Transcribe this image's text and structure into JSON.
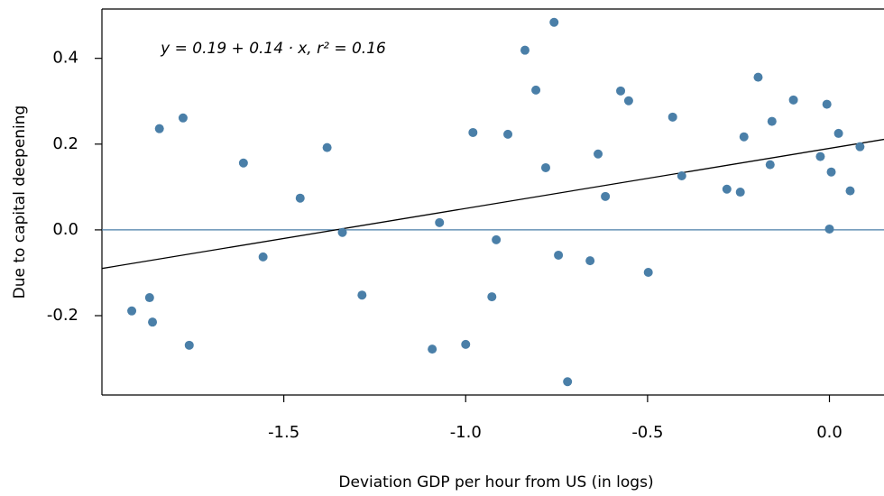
{
  "chart_data": {
    "type": "scatter",
    "x_label": "Deviation GDP per hour from US (in logs)",
    "y_label": "Due to capital deepening",
    "annotation": "y = 0.19 + 0.14 · x,  r² = 0.16",
    "trendline": {
      "intercept": 0.19,
      "slope": 0.14,
      "color": "#000000"
    },
    "reference_line": {
      "y": 0,
      "color": "#4a7fa8"
    },
    "xlim": [
      -2.0,
      0.15
    ],
    "ylim": [
      -0.385,
      0.515
    ],
    "xticks": [
      -1.5,
      {
        "value": -1,
        "label": "-1.0"
      },
      -0.5,
      {
        "value": 0,
        "label": "0.0"
      }
    ],
    "yticks": [
      0.4,
      0.2,
      {
        "value": 0,
        "label": "0.0"
      },
      -0.2
    ],
    "series": [
      {
        "color": "#4a7fa8",
        "x": [
          -1.918,
          -1.869,
          -1.861,
          -1.842,
          -1.777,
          -1.76,
          -1.611,
          -1.557,
          -1.455,
          -1.381,
          -1.339,
          -1.285,
          -1.092,
          -1.072,
          -1.0,
          -0.98,
          -0.928,
          -0.916,
          -0.884,
          -0.837,
          -0.807,
          -0.78,
          -0.757,
          -0.745,
          -0.72,
          -0.658,
          -0.636,
          -0.616,
          -0.574,
          -0.552,
          -0.498,
          -0.431,
          -0.406,
          -0.282,
          -0.245,
          -0.235,
          -0.196,
          -0.163,
          -0.158,
          -0.099,
          -0.025,
          -0.007,
          0.0,
          0.005,
          0.025,
          0.057,
          0.084
        ],
        "values": [
          -0.189,
          -0.158,
          -0.215,
          0.236,
          0.261,
          -0.269,
          0.156,
          -0.063,
          0.074,
          0.192,
          -0.006,
          -0.152,
          -0.278,
          0.017,
          -0.267,
          0.227,
          -0.156,
          -0.023,
          0.223,
          0.419,
          0.326,
          0.145,
          0.484,
          -0.059,
          -0.354,
          -0.072,
          0.177,
          0.078,
          0.324,
          0.301,
          -0.099,
          0.263,
          0.126,
          0.095,
          0.088,
          0.217,
          0.356,
          0.152,
          0.253,
          0.303,
          0.171,
          0.293,
          0.002,
          0.135,
          0.225,
          0.091,
          0.194
        ]
      }
    ]
  }
}
